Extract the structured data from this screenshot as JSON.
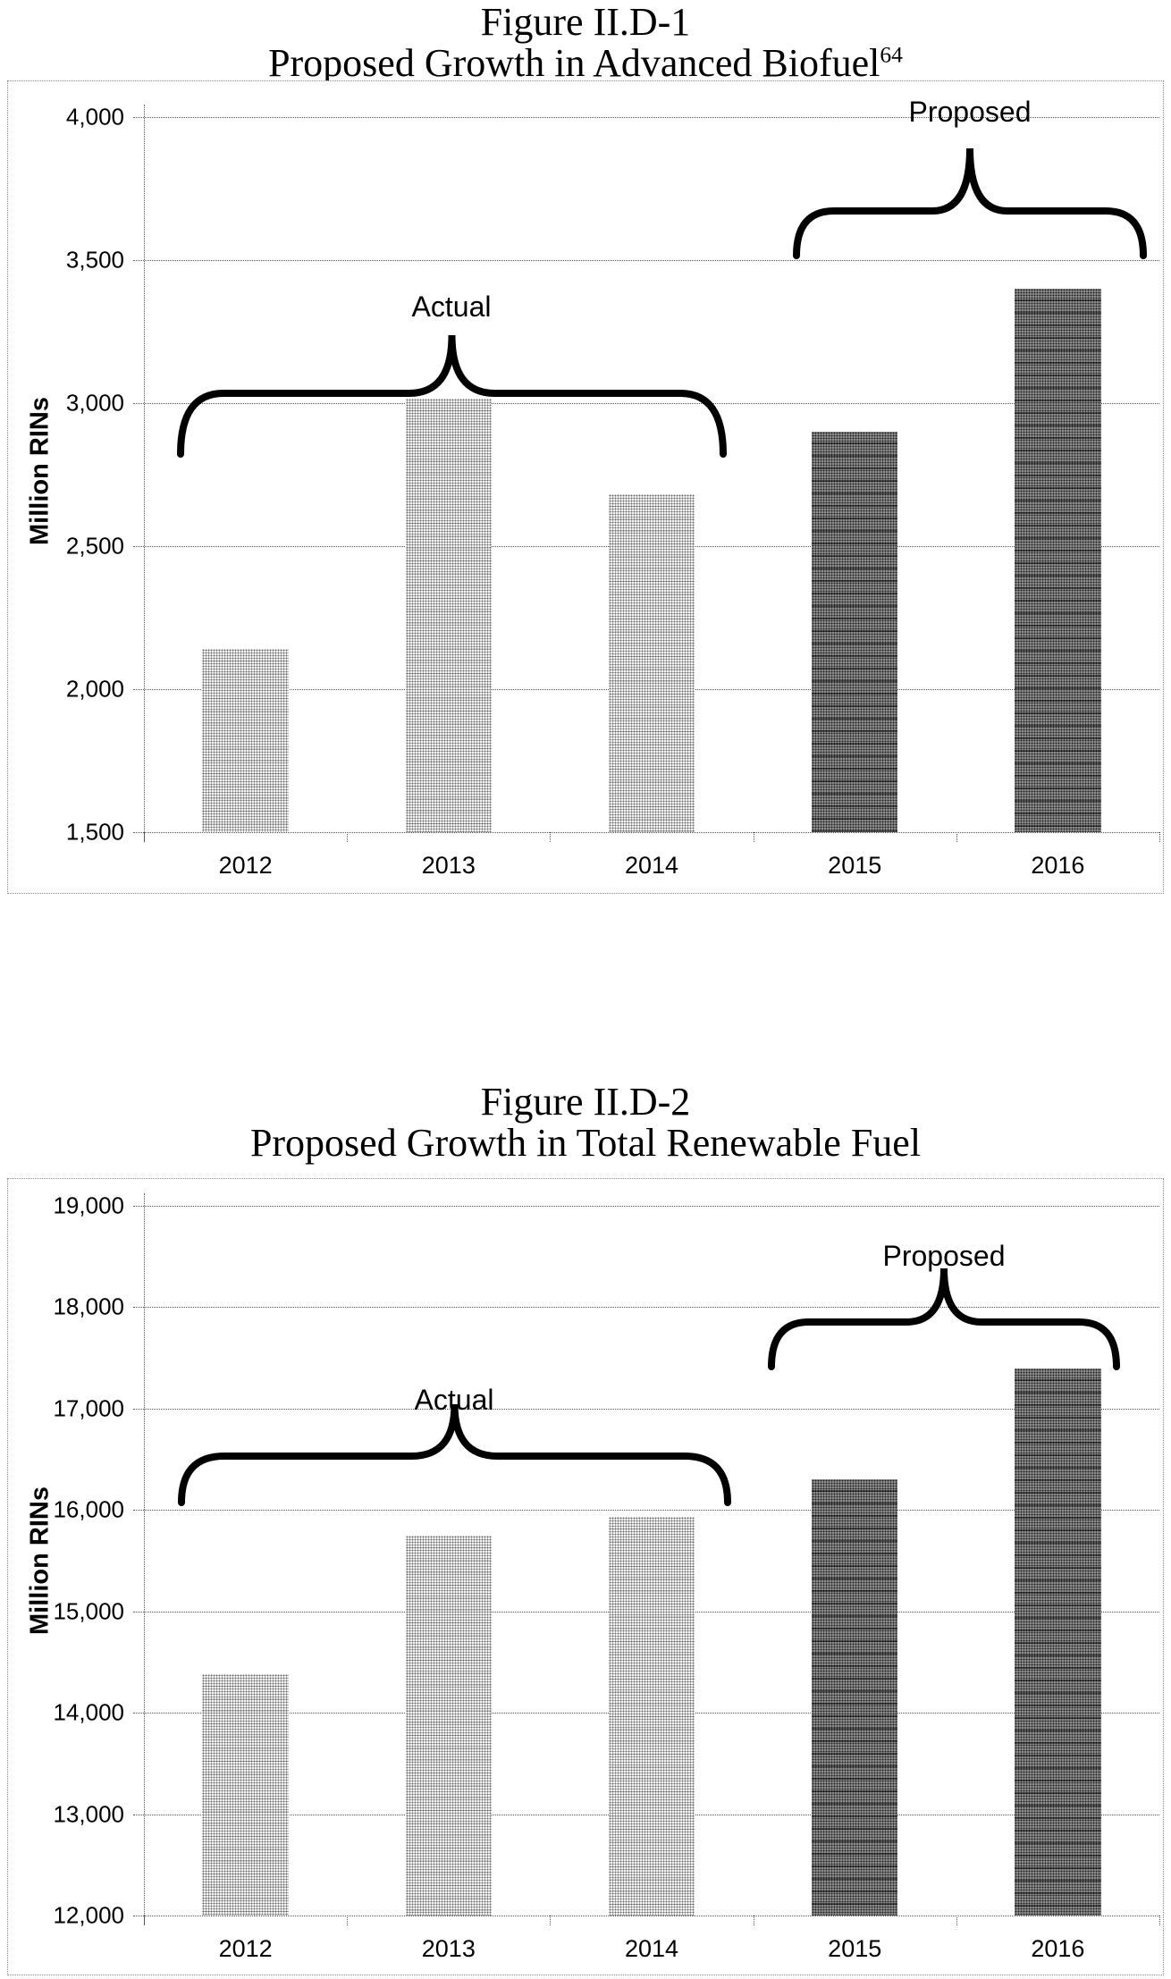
{
  "chart_data": [
    {
      "type": "bar",
      "title": "Figure II.D-1",
      "subtitle": "Proposed Growth in Advanced Biofuel",
      "title_superscript": "64",
      "ylabel": "Million RINs",
      "xlabel": "",
      "categories": [
        "2012",
        "2013",
        "2014",
        "2015",
        "2016"
      ],
      "values": [
        2140,
        3015,
        2680,
        2900,
        3400
      ],
      "groups": [
        "actual",
        "actual",
        "actual",
        "proposed",
        "proposed"
      ],
      "ylim": [
        1500,
        4000
      ],
      "ytick_step": 500,
      "ytick_labels": [
        "4,000",
        "3,500",
        "3,000",
        "2,500",
        "2,000",
        "1,500"
      ],
      "grid": "horizontal dotted",
      "legend": "none",
      "annotations": [
        {
          "label": "Actual",
          "span": [
            "2012",
            "2014"
          ],
          "style": "curly brace over bars"
        },
        {
          "label": "Proposed",
          "span": [
            "2015",
            "2016"
          ],
          "style": "curly brace over bars"
        }
      ],
      "bar_colors": {
        "actual": "#c2c2c2",
        "proposed": "#6e6e6e"
      },
      "bar_fill_style": "dotted pattern"
    },
    {
      "type": "bar",
      "title": "Figure II.D-2",
      "subtitle": "Proposed Growth in Total Renewable Fuel",
      "ylabel": "Million RINs",
      "xlabel": "",
      "categories": [
        "2012",
        "2013",
        "2014",
        "2015",
        "2016"
      ],
      "values": [
        14380,
        15750,
        15930,
        16300,
        17400
      ],
      "groups": [
        "actual",
        "actual",
        "actual",
        "proposed",
        "proposed"
      ],
      "ylim": [
        12000,
        19000
      ],
      "ytick_step": 1000,
      "ytick_labels": [
        "19,000",
        "18,000",
        "17,000",
        "16,000",
        "15,000",
        "14,000",
        "13,000",
        "12,000"
      ],
      "grid": "horizontal dotted",
      "legend": "none",
      "annotations": [
        {
          "label": "Actual",
          "span": [
            "2012",
            "2014"
          ],
          "style": "curly brace over bars"
        },
        {
          "label": "Proposed",
          "span": [
            "2015",
            "2016"
          ],
          "style": "curly brace over bars"
        }
      ],
      "bar_colors": {
        "actual": "#c2c2c2",
        "proposed": "#6e6e6e"
      },
      "bar_fill_style": "dotted pattern"
    }
  ],
  "colors": {
    "text": "#000000",
    "gridline": "#555555",
    "chart_border": "#8a8a8a",
    "background": "#ffffff"
  }
}
